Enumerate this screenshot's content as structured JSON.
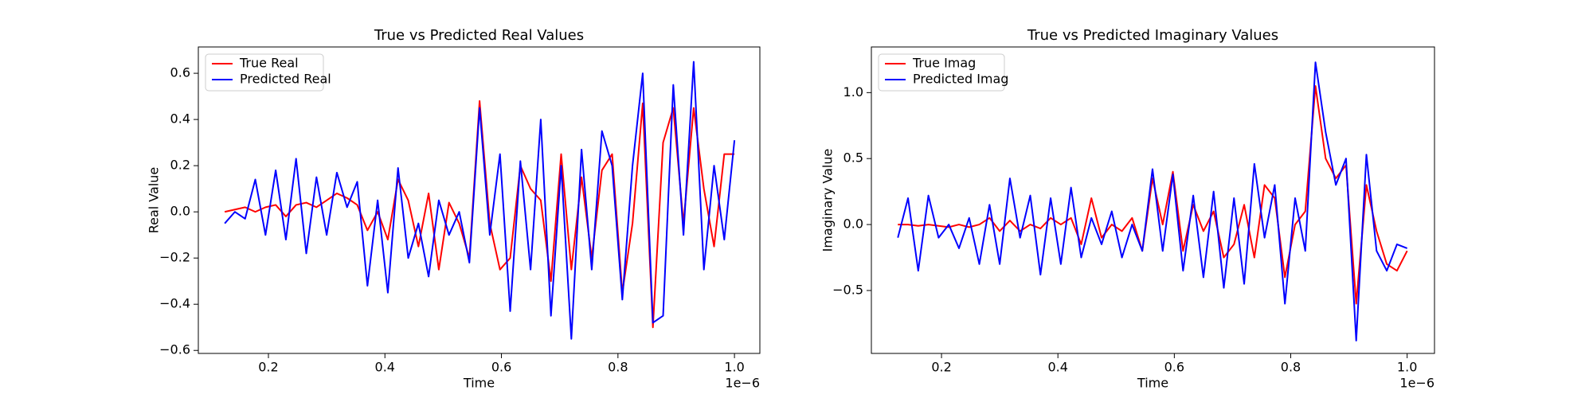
{
  "chart_data": [
    {
      "type": "line",
      "title": "True vs Predicted Real Values",
      "xlabel": "Time",
      "ylabel": "Real Value",
      "x_offset_text": "1e−6",
      "legend": "upper left",
      "grid": false,
      "xlim": [
        0.0797,
        1.0436
      ],
      "ylim": [
        -0.613,
        0.714
      ],
      "xticks": [
        0.2,
        0.4,
        0.6,
        0.8,
        {
          "value": 1,
          "label": "1.0"
        }
      ],
      "yticks": [
        {
          "value": -0.6,
          "label": "−0.6"
        },
        {
          "value": -0.4,
          "label": "−0.4"
        },
        {
          "value": -0.2,
          "label": "−0.2"
        },
        {
          "value": 0,
          "label": "0.0"
        },
        0.2,
        0.4,
        0.6
      ],
      "x": [
        0.125,
        0.1425,
        0.16,
        0.1775,
        0.195,
        0.2125,
        0.23,
        0.2475,
        0.265,
        0.2825,
        0.3,
        0.3175,
        0.335,
        0.3525,
        0.37,
        0.3875,
        0.405,
        0.4225,
        0.44,
        0.4575,
        0.475,
        0.4925,
        0.51,
        0.5275,
        0.545,
        0.5625,
        0.58,
        0.5975,
        0.615,
        0.6325,
        0.65,
        0.6675,
        0.685,
        0.7025,
        0.72,
        0.7375,
        0.755,
        0.7725,
        0.79,
        0.8075,
        0.825,
        0.8425,
        0.86,
        0.8775,
        0.895,
        0.9125,
        0.93,
        0.9475,
        0.965,
        0.9825,
        1.0
      ],
      "series": [
        {
          "name": "True Real",
          "color": "#ff0000",
          "values": [
            0.0,
            0.01,
            0.02,
            0.0,
            0.02,
            0.03,
            -0.02,
            0.03,
            0.04,
            0.02,
            0.05,
            0.08,
            0.06,
            0.03,
            -0.08,
            0.0,
            -0.12,
            0.14,
            0.05,
            -0.15,
            0.08,
            -0.25,
            0.04,
            -0.05,
            -0.2,
            0.48,
            -0.05,
            -0.25,
            -0.2,
            0.2,
            0.1,
            0.05,
            -0.3,
            0.25,
            -0.25,
            0.15,
            -0.2,
            0.18,
            0.25,
            -0.35,
            -0.05,
            0.47,
            -0.5,
            0.3,
            0.45,
            -0.05,
            0.45,
            0.1,
            -0.15,
            0.25,
            0.25
          ]
        },
        {
          "name": "Predicted Real",
          "color": "#0000ff",
          "values": [
            -0.05,
            0.0,
            -0.03,
            0.14,
            -0.1,
            0.18,
            -0.12,
            0.23,
            -0.18,
            0.15,
            -0.1,
            0.17,
            0.02,
            0.13,
            -0.32,
            0.05,
            -0.35,
            0.19,
            -0.2,
            -0.05,
            -0.28,
            0.05,
            -0.1,
            0.0,
            -0.22,
            0.45,
            -0.1,
            0.25,
            -0.43,
            0.22,
            -0.25,
            0.4,
            -0.45,
            0.2,
            -0.55,
            0.27,
            -0.25,
            0.35,
            0.2,
            -0.38,
            0.2,
            0.6,
            -0.48,
            -0.45,
            0.55,
            -0.1,
            0.65,
            -0.25,
            0.2,
            -0.12,
            0.31
          ]
        }
      ]
    },
    {
      "type": "line",
      "title": "True vs Predicted Imaginary Values",
      "xlabel": "Time",
      "ylabel": "Imaginary Value",
      "x_offset_text": "1e−6",
      "legend": "upper left",
      "grid": false,
      "xlim": [
        0.0795,
        1.047
      ],
      "ylim": [
        -0.977,
        1.346
      ],
      "xticks": [
        0.2,
        0.4,
        0.6,
        0.8,
        {
          "value": 1,
          "label": "1.0"
        }
      ],
      "yticks": [
        {
          "value": -0.5,
          "label": "−0.5"
        },
        {
          "value": 0,
          "label": "0.0"
        },
        0.5,
        {
          "value": 1,
          "label": "1.0"
        }
      ],
      "x": [
        0.125,
        0.1425,
        0.16,
        0.1775,
        0.195,
        0.2125,
        0.23,
        0.2475,
        0.265,
        0.2825,
        0.3,
        0.3175,
        0.335,
        0.3525,
        0.37,
        0.3875,
        0.405,
        0.4225,
        0.44,
        0.4575,
        0.475,
        0.4925,
        0.51,
        0.5275,
        0.545,
        0.5625,
        0.58,
        0.5975,
        0.615,
        0.6325,
        0.65,
        0.6675,
        0.685,
        0.7025,
        0.72,
        0.7375,
        0.755,
        0.7725,
        0.79,
        0.8075,
        0.825,
        0.8425,
        0.86,
        0.8775,
        0.895,
        0.9125,
        0.93,
        0.9475,
        0.965,
        0.9825,
        1.0
      ],
      "series": [
        {
          "name": "True Imag",
          "color": "#ff0000",
          "values": [
            0.0,
            0.0,
            -0.01,
            0.0,
            -0.01,
            -0.02,
            0.0,
            -0.02,
            0.0,
            0.05,
            -0.05,
            0.03,
            -0.05,
            0.0,
            -0.03,
            0.05,
            0.0,
            0.05,
            -0.15,
            0.2,
            -0.1,
            0.0,
            -0.05,
            0.05,
            -0.2,
            0.35,
            0.0,
            0.4,
            -0.2,
            0.15,
            -0.05,
            0.1,
            -0.25,
            -0.15,
            0.15,
            -0.25,
            0.3,
            0.2,
            -0.4,
            0.0,
            0.1,
            1.05,
            0.5,
            0.35,
            0.45,
            -0.6,
            0.3,
            -0.05,
            -0.3,
            -0.35,
            -0.2
          ]
        },
        {
          "name": "Predicted Imag",
          "color": "#0000ff",
          "values": [
            -0.1,
            0.2,
            -0.35,
            0.22,
            -0.1,
            0.0,
            -0.18,
            0.05,
            -0.3,
            0.15,
            -0.3,
            0.35,
            -0.1,
            0.22,
            -0.38,
            0.2,
            -0.3,
            0.28,
            -0.25,
            0.05,
            -0.15,
            0.1,
            -0.25,
            0.0,
            -0.2,
            0.42,
            -0.2,
            0.38,
            -0.35,
            0.22,
            -0.4,
            0.25,
            -0.48,
            0.2,
            -0.45,
            0.46,
            -0.1,
            0.3,
            -0.6,
            0.2,
            -0.2,
            1.23,
            0.7,
            0.3,
            0.5,
            -0.88,
            0.53,
            -0.2,
            -0.35,
            -0.15,
            -0.18
          ]
        }
      ]
    }
  ]
}
